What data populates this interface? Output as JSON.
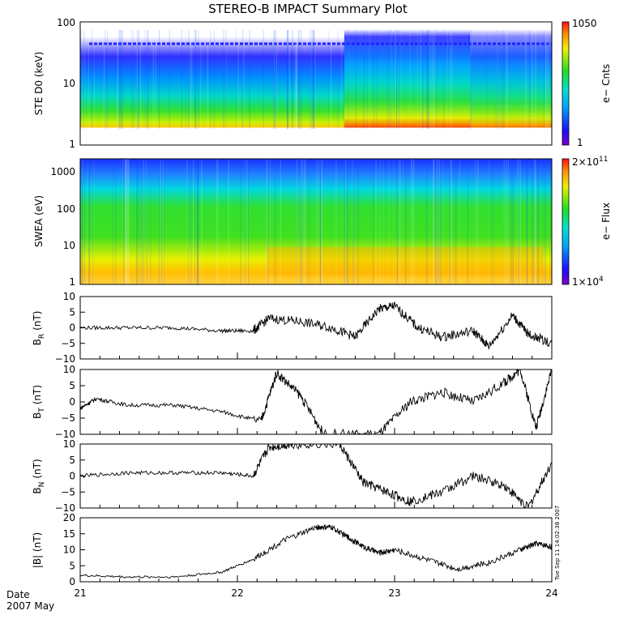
{
  "title": "STEREO-B IMPACT Summary Plot",
  "date_label": "Date",
  "month_label": "2007 May",
  "timestamp": "Tue Sep 11 14:02:38 2007",
  "chart_data": [
    {
      "type": "heatmap",
      "ylabel": "STE D0 (keV)",
      "yscale": "log",
      "ylim": [
        1,
        100
      ],
      "y_ticks": [
        "1",
        "10",
        "100"
      ],
      "colorbar": {
        "label": "e− Cnts",
        "min": "1",
        "max": "1050"
      },
      "x_days": [
        21,
        21.5,
        22,
        22.5,
        23,
        23.5,
        24
      ],
      "flux_floor_keV": [
        2,
        2,
        2,
        2,
        2,
        2,
        2
      ],
      "peak_region_days": [
        22.6,
        23.4
      ]
    },
    {
      "type": "heatmap",
      "ylabel": "SWEA (eV)",
      "yscale": "log",
      "ylim": [
        1,
        2000
      ],
      "y_ticks": [
        "1",
        "10",
        "100",
        "1000"
      ],
      "colorbar": {
        "label": "e− Flux",
        "min_base": "1×10",
        "min_exp": "4",
        "max_base": "2×10",
        "max_exp": "11"
      }
    },
    {
      "type": "line",
      "ylabel": "B_R (nT)",
      "ylabel_main": "B",
      "ylabel_sub": "R",
      "ylabel_unit": "(nT)",
      "ylim": [
        -10,
        10
      ],
      "y_ticks": [
        "10",
        "5",
        "0",
        "−5",
        "−10"
      ],
      "x": [
        21,
        21.3,
        21.6,
        21.9,
        22.1,
        22.2,
        22.4,
        22.6,
        22.75,
        22.9,
        23.0,
        23.15,
        23.3,
        23.5,
        23.6,
        23.75,
        23.85,
        24
      ],
      "values": [
        0,
        0,
        0,
        -1,
        -1,
        3,
        2,
        0,
        -3,
        6,
        7,
        0,
        -3,
        -1,
        -6,
        4,
        -2,
        -5
      ]
    },
    {
      "type": "line",
      "ylabel": "B_T (nT)",
      "ylabel_main": "B",
      "ylabel_sub": "T",
      "ylabel_unit": "(nT)",
      "ylim": [
        -10,
        10
      ],
      "y_ticks": [
        "10",
        "5",
        "0",
        "−5",
        "−10"
      ],
      "x": [
        21,
        21.1,
        21.3,
        21.6,
        21.9,
        22.15,
        22.25,
        22.4,
        22.55,
        22.9,
        23.1,
        23.3,
        23.5,
        23.7,
        23.8,
        23.9,
        24
      ],
      "values": [
        -2,
        1,
        -1,
        -1,
        -3,
        -6,
        9,
        2,
        -10,
        -10,
        0,
        3,
        0,
        6,
        10,
        -8,
        10
      ]
    },
    {
      "type": "line",
      "ylabel": "B_N (nT)",
      "ylabel_main": "B",
      "ylabel_sub": "N",
      "ylabel_unit": "(nT)",
      "ylim": [
        -10,
        10
      ],
      "y_ticks": [
        "10",
        "5",
        "0",
        "−5",
        "−10"
      ],
      "x": [
        21,
        21.3,
        21.6,
        21.9,
        22.1,
        22.2,
        22.35,
        22.65,
        22.8,
        22.95,
        23.1,
        23.3,
        23.5,
        23.7,
        23.85,
        24
      ],
      "values": [
        0,
        1,
        1,
        1,
        0,
        9,
        10,
        10,
        -2,
        -5,
        -8,
        -5,
        0,
        -3,
        -10,
        4
      ]
    },
    {
      "type": "line",
      "ylabel": "|B| (nT)",
      "ylim": [
        0,
        20
      ],
      "y_ticks": [
        "20",
        "15",
        "10",
        "5",
        "0"
      ],
      "x": [
        21,
        21.3,
        21.6,
        21.9,
        22.1,
        22.3,
        22.5,
        22.6,
        22.7,
        22.8,
        22.9,
        23.0,
        23.2,
        23.4,
        23.6,
        23.8,
        23.9,
        24
      ],
      "values": [
        2,
        1.5,
        1.5,
        3,
        7,
        13,
        17,
        17,
        14,
        11,
        9,
        10,
        7,
        4,
        6,
        10,
        12,
        11
      ],
      "x_ticks": [
        "21",
        "22",
        "23",
        "24"
      ]
    }
  ]
}
